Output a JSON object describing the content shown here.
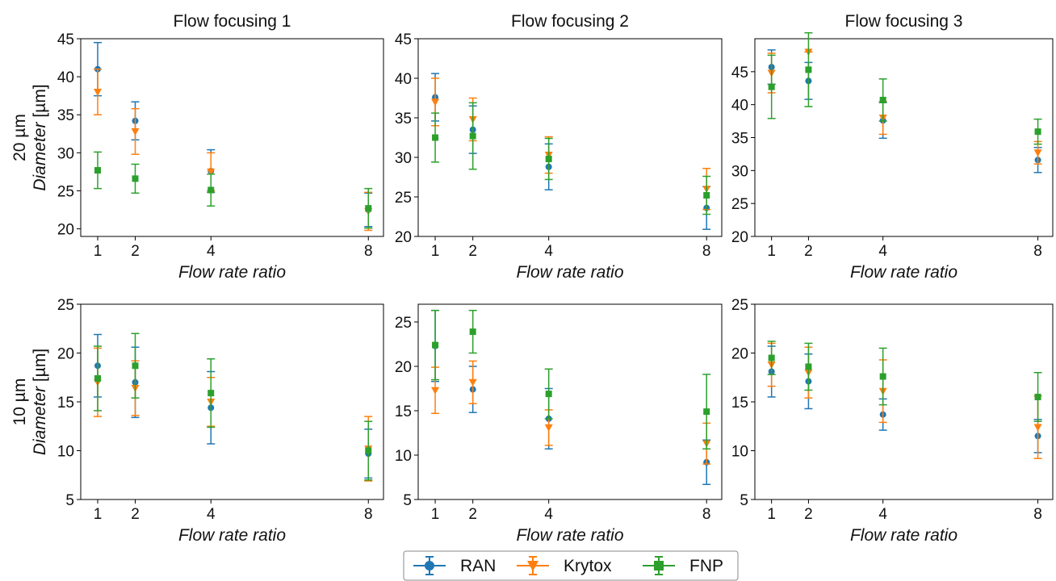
{
  "chart_data": {
    "type": "scatter",
    "grid": false,
    "legend_position": "bottom-center",
    "x_categories": [
      1,
      2,
      4,
      8
    ],
    "x_label": "Flow rate ratio",
    "series_styles": [
      {
        "name": "RAN",
        "color": "#1f77b4",
        "marker": "circle"
      },
      {
        "name": "Krytox",
        "color": "#ff7f0e",
        "marker": "triangle-down"
      },
      {
        "name": "FNP",
        "color": "#2ca02c",
        "marker": "square"
      }
    ],
    "row_labels": [
      {
        "lead": "20 µm",
        "italic": "Diameter",
        "unit": " [µm]"
      },
      {
        "lead": "10 µm",
        "italic": "Diameter",
        "unit": " [µm]"
      }
    ],
    "panels": [
      {
        "title": "Flow focusing 1",
        "row": 0,
        "col": 0,
        "ylim": [
          19,
          45
        ],
        "yticks": [
          20,
          25,
          30,
          35,
          40,
          45
        ],
        "series": [
          {
            "name": "RAN",
            "values": [
              41.0,
              34.2,
              27.6,
              22.5
            ],
            "errors": [
              3.5,
              2.5,
              2.8,
              2.2
            ]
          },
          {
            "name": "Krytox",
            "values": [
              38.0,
              32.8,
              27.5,
              22.3
            ],
            "errors": [
              3.0,
              3.0,
              2.5,
              2.5
            ]
          },
          {
            "name": "FNP",
            "values": [
              27.7,
              26.6,
              25.1,
              22.7
            ],
            "errors": [
              2.4,
              1.9,
              2.1,
              2.6
            ]
          }
        ]
      },
      {
        "title": "Flow focusing 2",
        "row": 0,
        "col": 1,
        "ylim": [
          20,
          45
        ],
        "yticks": [
          20,
          25,
          30,
          35,
          40,
          45
        ],
        "series": [
          {
            "name": "RAN",
            "values": [
              37.6,
              33.5,
              28.8,
              23.6
            ],
            "errors": [
              3.0,
              3.0,
              2.9,
              2.7
            ]
          },
          {
            "name": "Krytox",
            "values": [
              37.0,
              34.8,
              30.3,
              26.0
            ],
            "errors": [
              3.0,
              2.7,
              2.3,
              2.6
            ]
          },
          {
            "name": "FNP",
            "values": [
              32.5,
              32.7,
              29.8,
              25.2
            ],
            "errors": [
              3.1,
              4.2,
              2.6,
              2.4
            ]
          }
        ]
      },
      {
        "title": "Flow focusing 3",
        "row": 0,
        "col": 2,
        "ylim": [
          20,
          50
        ],
        "yticks": [
          20,
          25,
          30,
          35,
          40,
          45
        ],
        "series": [
          {
            "name": "RAN",
            "values": [
              45.7,
              43.6,
              37.6,
              31.6
            ],
            "errors": [
              2.6,
              2.8,
              2.7,
              1.9
            ]
          },
          {
            "name": "Krytox",
            "values": [
              44.8,
              48.0,
              38.0,
              32.7
            ],
            "errors": [
              3.0,
              0.0,
              2.5,
              1.7
            ]
          },
          {
            "name": "FNP",
            "values": [
              42.7,
              45.3,
              40.7,
              35.9
            ],
            "errors": [
              4.8,
              5.6,
              3.2,
              1.9
            ]
          }
        ]
      },
      {
        "title": "",
        "row": 1,
        "col": 0,
        "ylim": [
          5,
          25
        ],
        "yticks": [
          5,
          10,
          15,
          20,
          25
        ],
        "series": [
          {
            "name": "RAN",
            "values": [
              18.7,
              17.0,
              14.4,
              9.7
            ],
            "errors": [
              3.2,
              3.6,
              3.7,
              2.5
            ]
          },
          {
            "name": "Krytox",
            "values": [
              17.0,
              16.4,
              15.0,
              10.2
            ],
            "errors": [
              3.5,
              2.8,
              2.5,
              3.3
            ]
          },
          {
            "name": "FNP",
            "values": [
              17.4,
              18.7,
              15.9,
              10.0
            ],
            "errors": [
              3.3,
              3.3,
              3.5,
              3.0
            ]
          }
        ]
      },
      {
        "title": "",
        "row": 1,
        "col": 1,
        "ylim": [
          5,
          27
        ],
        "yticks": [
          5,
          10,
          15,
          20,
          25
        ],
        "series": [
          {
            "name": "RAN",
            "values": [
              22.3,
              17.4,
              14.1,
              9.2
            ],
            "errors": [
              4.0,
              2.6,
              3.4,
              2.5
            ]
          },
          {
            "name": "Krytox",
            "values": [
              17.3,
              18.2,
              13.1,
              11.3
            ],
            "errors": [
              2.6,
              2.4,
              2.0,
              2.3
            ]
          },
          {
            "name": "FNP",
            "values": [
              22.4,
              23.9,
              16.9,
              14.9
            ],
            "errors": [
              3.9,
              2.4,
              2.8,
              4.2
            ]
          }
        ]
      },
      {
        "title": "",
        "row": 1,
        "col": 2,
        "ylim": [
          5,
          25
        ],
        "yticks": [
          5,
          10,
          15,
          20,
          25
        ],
        "series": [
          {
            "name": "RAN",
            "values": [
              18.1,
              17.1,
              13.7,
              11.5
            ],
            "errors": [
              2.6,
              2.8,
              1.6,
              1.7
            ]
          },
          {
            "name": "Krytox",
            "values": [
              18.8,
              18.0,
              16.1,
              12.4
            ],
            "errors": [
              2.2,
              2.6,
              3.2,
              3.2
            ]
          },
          {
            "name": "FNP",
            "values": [
              19.5,
              18.6,
              17.6,
              15.5
            ],
            "errors": [
              1.7,
              2.4,
              2.9,
              2.5
            ]
          }
        ]
      }
    ]
  }
}
